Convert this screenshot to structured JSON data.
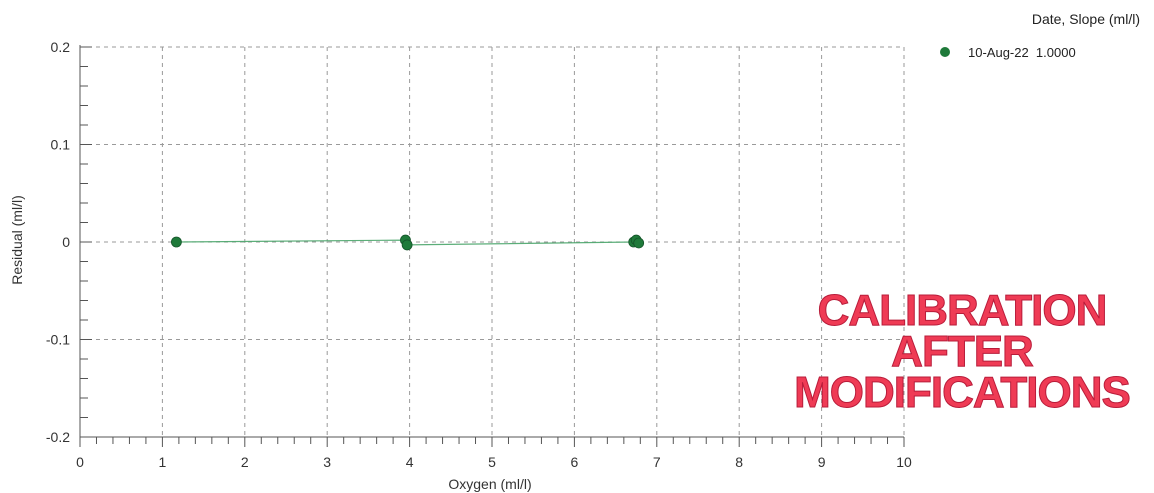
{
  "chart_data": {
    "type": "scatter",
    "xlabel": "Oxygen (ml/l)",
    "ylabel": "Residual (ml/l)",
    "xlim": [
      0,
      10
    ],
    "ylim": [
      -0.2,
      0.2
    ],
    "x_ticks": [
      0,
      1,
      2,
      3,
      4,
      5,
      6,
      7,
      8,
      9,
      10
    ],
    "x_tick_labels": [
      "0",
      "1",
      "2",
      "3",
      "4",
      "5",
      "6",
      "7",
      "8",
      "9",
      "10"
    ],
    "y_ticks": [
      0.2,
      0.1,
      0,
      -0.1,
      -0.2
    ],
    "y_tick_labels": [
      "0.2",
      "0.1",
      "0",
      "-0.1",
      "-0.2"
    ],
    "grid": true,
    "legend_position": "top-right",
    "legend_title": "Date, Slope (ml/l)",
    "series": [
      {
        "name": "10-Aug-22  1.0000",
        "color": "#1f7a3a",
        "line_color": "#4aa56a",
        "points": [
          {
            "x": 1.17,
            "y": 0.0
          },
          {
            "x": 3.95,
            "y": 0.002
          },
          {
            "x": 3.97,
            "y": -0.003
          },
          {
            "x": 6.72,
            "y": 0.0
          },
          {
            "x": 6.75,
            "y": 0.002
          },
          {
            "x": 6.78,
            "y": -0.001
          }
        ]
      }
    ]
  },
  "stamp": {
    "lines": [
      "CALIBRATION",
      "AFTER",
      "MODIFICATIONS"
    ],
    "color": "#ef3b55"
  }
}
